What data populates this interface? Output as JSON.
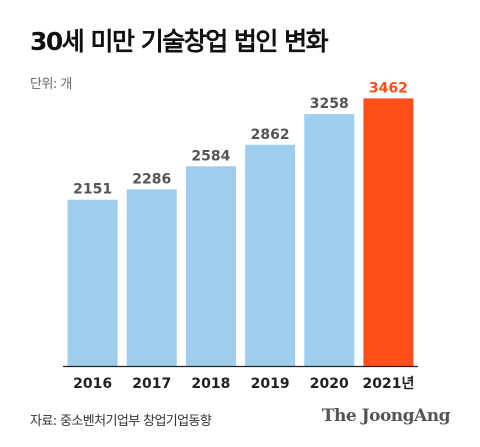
{
  "header": {
    "title": "30세 미만 기술창업 법인 변화",
    "unit": "단위: 개"
  },
  "footer": {
    "source": "자료: 중소벤처기업부 창업기업동향",
    "brand": "The JoongAng"
  },
  "colors": {
    "bar": "#9ecdee",
    "highlight": "#ff4e1a",
    "value_text": "#555555",
    "axis": "#222222"
  },
  "chart_data": {
    "type": "bar",
    "categories": [
      "2016",
      "2017",
      "2018",
      "2019",
      "2020",
      "2021년"
    ],
    "values": [
      2151,
      2286,
      2584,
      2862,
      3258,
      3462
    ],
    "highlight_index": 5,
    "title": "30세 미만 기술창업 법인 변화",
    "xlabel": "",
    "ylabel": "",
    "ylim": [
      0,
      3700
    ],
    "grid": false,
    "legend": "none"
  }
}
